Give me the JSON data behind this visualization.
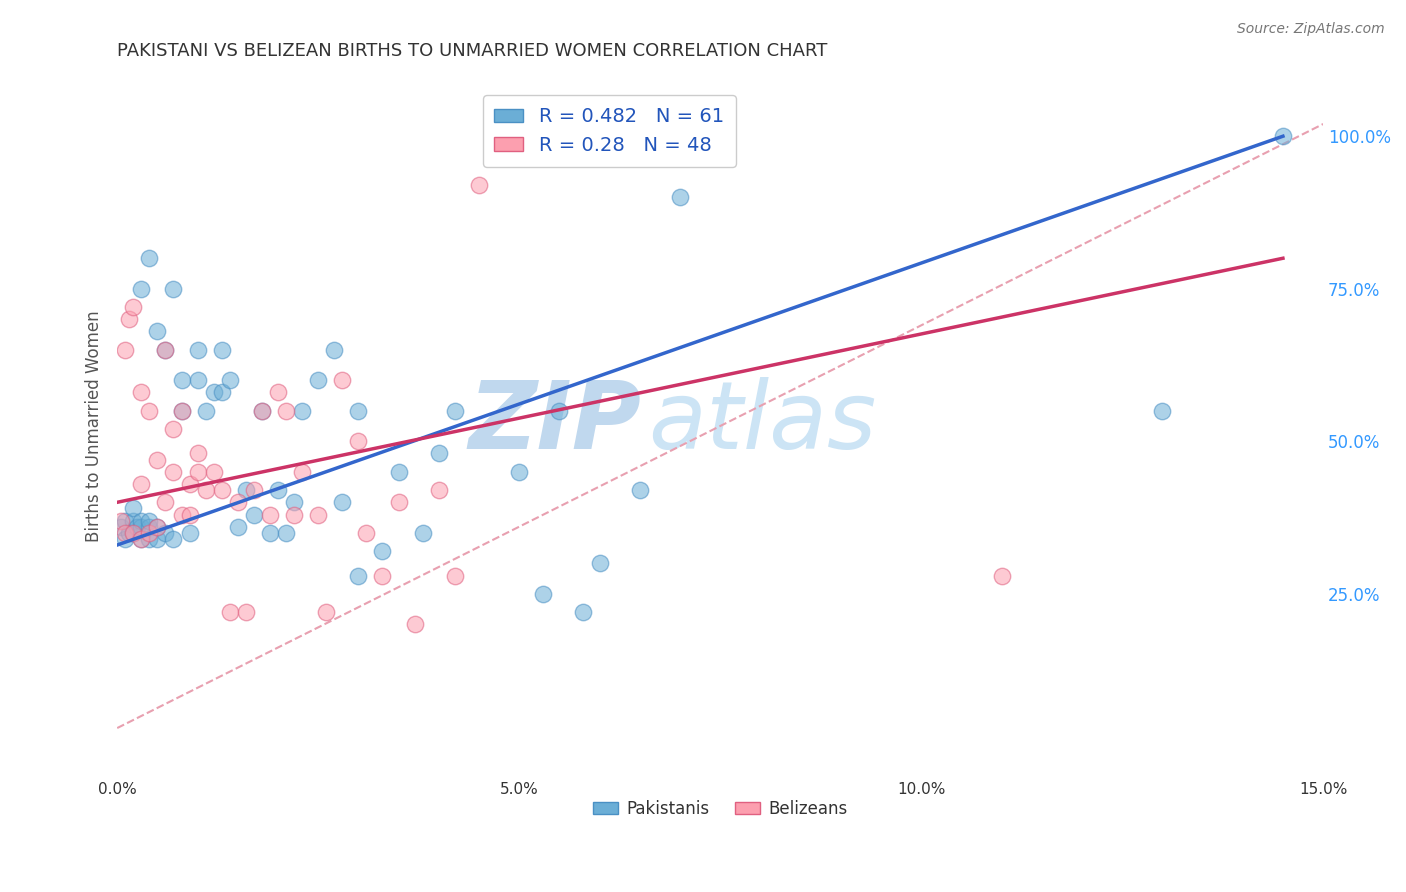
{
  "title": "PAKISTANI VS BELIZEAN BIRTHS TO UNMARRIED WOMEN CORRELATION CHART",
  "source": "Source: ZipAtlas.com",
  "ylabel": "Births to Unmarried Women",
  "xlim": [
    0.0,
    0.15
  ],
  "ylim": [
    -0.05,
    1.1
  ],
  "yticks_right": [
    0.25,
    0.5,
    0.75,
    1.0
  ],
  "ytick_right_labels": [
    "25.0%",
    "50.0%",
    "75.0%",
    "100.0%"
  ],
  "xticks": [
    0.0,
    0.025,
    0.05,
    0.075,
    0.1,
    0.125,
    0.15
  ],
  "xtick_labels": [
    "0.0%",
    "",
    "5.0%",
    "",
    "10.0%",
    "",
    "15.0%"
  ],
  "blue_color": "#6baed6",
  "pink_color": "#fc9faf",
  "blue_edge": "#4a90c4",
  "pink_edge": "#e06080",
  "blue_R": 0.482,
  "blue_N": 61,
  "pink_R": 0.28,
  "pink_N": 48,
  "blue_scatter_x": [
    0.0005,
    0.001,
    0.001,
    0.0015,
    0.002,
    0.002,
    0.002,
    0.0025,
    0.003,
    0.003,
    0.003,
    0.003,
    0.004,
    0.004,
    0.004,
    0.004,
    0.005,
    0.005,
    0.005,
    0.006,
    0.006,
    0.007,
    0.007,
    0.008,
    0.008,
    0.009,
    0.01,
    0.01,
    0.011,
    0.012,
    0.013,
    0.013,
    0.014,
    0.015,
    0.016,
    0.017,
    0.018,
    0.019,
    0.02,
    0.021,
    0.022,
    0.023,
    0.025,
    0.027,
    0.028,
    0.03,
    0.03,
    0.033,
    0.035,
    0.038,
    0.04,
    0.042,
    0.05,
    0.053,
    0.055,
    0.058,
    0.06,
    0.065,
    0.07,
    0.13,
    0.145
  ],
  "blue_scatter_y": [
    0.36,
    0.34,
    0.37,
    0.35,
    0.35,
    0.37,
    0.39,
    0.36,
    0.34,
    0.36,
    0.37,
    0.75,
    0.34,
    0.36,
    0.37,
    0.8,
    0.34,
    0.36,
    0.68,
    0.35,
    0.65,
    0.34,
    0.75,
    0.55,
    0.6,
    0.35,
    0.6,
    0.65,
    0.55,
    0.58,
    0.58,
    0.65,
    0.6,
    0.36,
    0.42,
    0.38,
    0.55,
    0.35,
    0.42,
    0.35,
    0.4,
    0.55,
    0.6,
    0.65,
    0.4,
    0.28,
    0.55,
    0.32,
    0.45,
    0.35,
    0.48,
    0.55,
    0.45,
    0.25,
    0.55,
    0.22,
    0.3,
    0.42,
    0.9,
    0.55,
    1.0
  ],
  "pink_scatter_x": [
    0.0005,
    0.001,
    0.001,
    0.0015,
    0.002,
    0.002,
    0.003,
    0.003,
    0.003,
    0.004,
    0.004,
    0.005,
    0.005,
    0.006,
    0.006,
    0.007,
    0.007,
    0.008,
    0.008,
    0.009,
    0.009,
    0.01,
    0.01,
    0.011,
    0.012,
    0.013,
    0.014,
    0.015,
    0.016,
    0.017,
    0.018,
    0.019,
    0.02,
    0.021,
    0.022,
    0.023,
    0.025,
    0.026,
    0.028,
    0.03,
    0.031,
    0.033,
    0.035,
    0.037,
    0.04,
    0.042,
    0.045,
    0.11
  ],
  "pink_scatter_y": [
    0.37,
    0.35,
    0.65,
    0.7,
    0.72,
    0.35,
    0.34,
    0.43,
    0.58,
    0.35,
    0.55,
    0.36,
    0.47,
    0.4,
    0.65,
    0.45,
    0.52,
    0.38,
    0.55,
    0.38,
    0.43,
    0.45,
    0.48,
    0.42,
    0.45,
    0.42,
    0.22,
    0.4,
    0.22,
    0.42,
    0.55,
    0.38,
    0.58,
    0.55,
    0.38,
    0.45,
    0.38,
    0.22,
    0.6,
    0.5,
    0.35,
    0.28,
    0.4,
    0.2,
    0.42,
    0.28,
    0.92,
    0.28
  ],
  "blue_line_x": [
    0.0,
    0.145
  ],
  "blue_line_y": [
    0.33,
    1.0
  ],
  "pink_line_x": [
    0.0,
    0.145
  ],
  "pink_line_y": [
    0.4,
    0.8
  ],
  "diag_line_x": [
    0.0,
    0.15
  ],
  "diag_line_y": [
    0.03,
    1.02
  ],
  "diag_color": "#e8a0b0",
  "watermark_zip": "ZIP",
  "watermark_atlas": "atlas",
  "watermark_color": "#c8dff0",
  "background_color": "#ffffff",
  "grid_color": "#dddddd",
  "title_color": "#333333",
  "axis_label_color": "#555555",
  "right_tick_color": "#3399ff",
  "legend_text_color": "#2255bb",
  "blue_line_color": "#3366cc",
  "pink_line_color": "#cc3366"
}
